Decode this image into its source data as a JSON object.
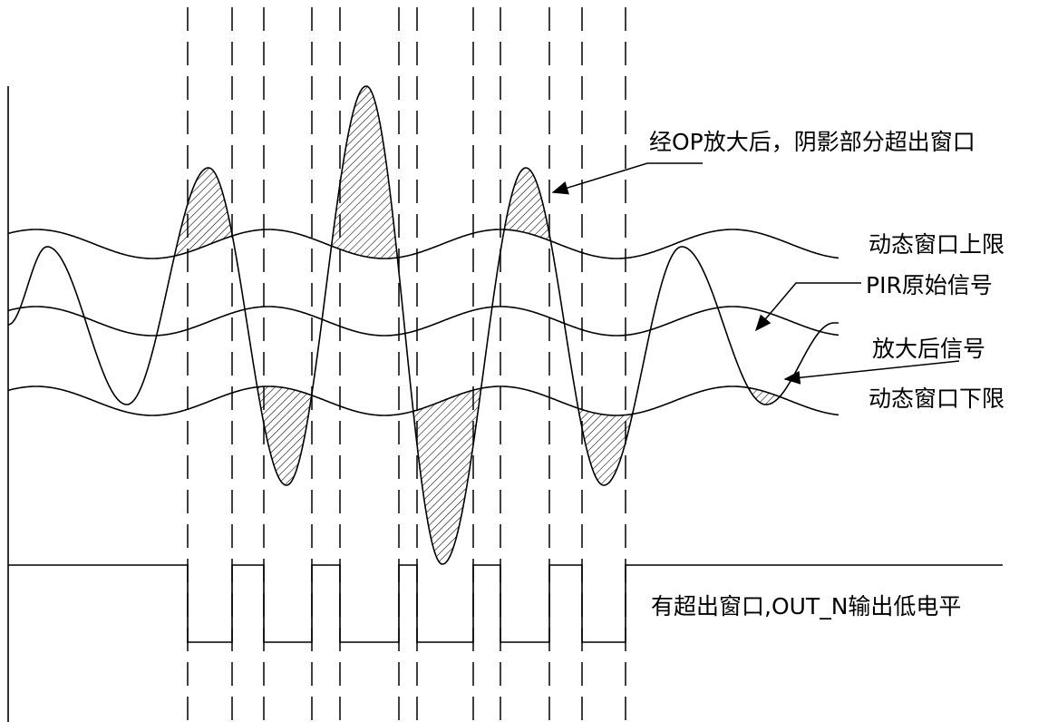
{
  "labels": {
    "shaded_note": "经OP放大后，阴影部分超出窗口",
    "upper_limit": "动态窗口上限",
    "pir_signal": "PIR原始信号",
    "amplified_signal": "放大后信号",
    "lower_limit": "动态窗口下限",
    "output_note": "有超出窗口,OUT_N输出低电平"
  },
  "colors": {
    "line": "#000000",
    "background": "#ffffff"
  }
}
